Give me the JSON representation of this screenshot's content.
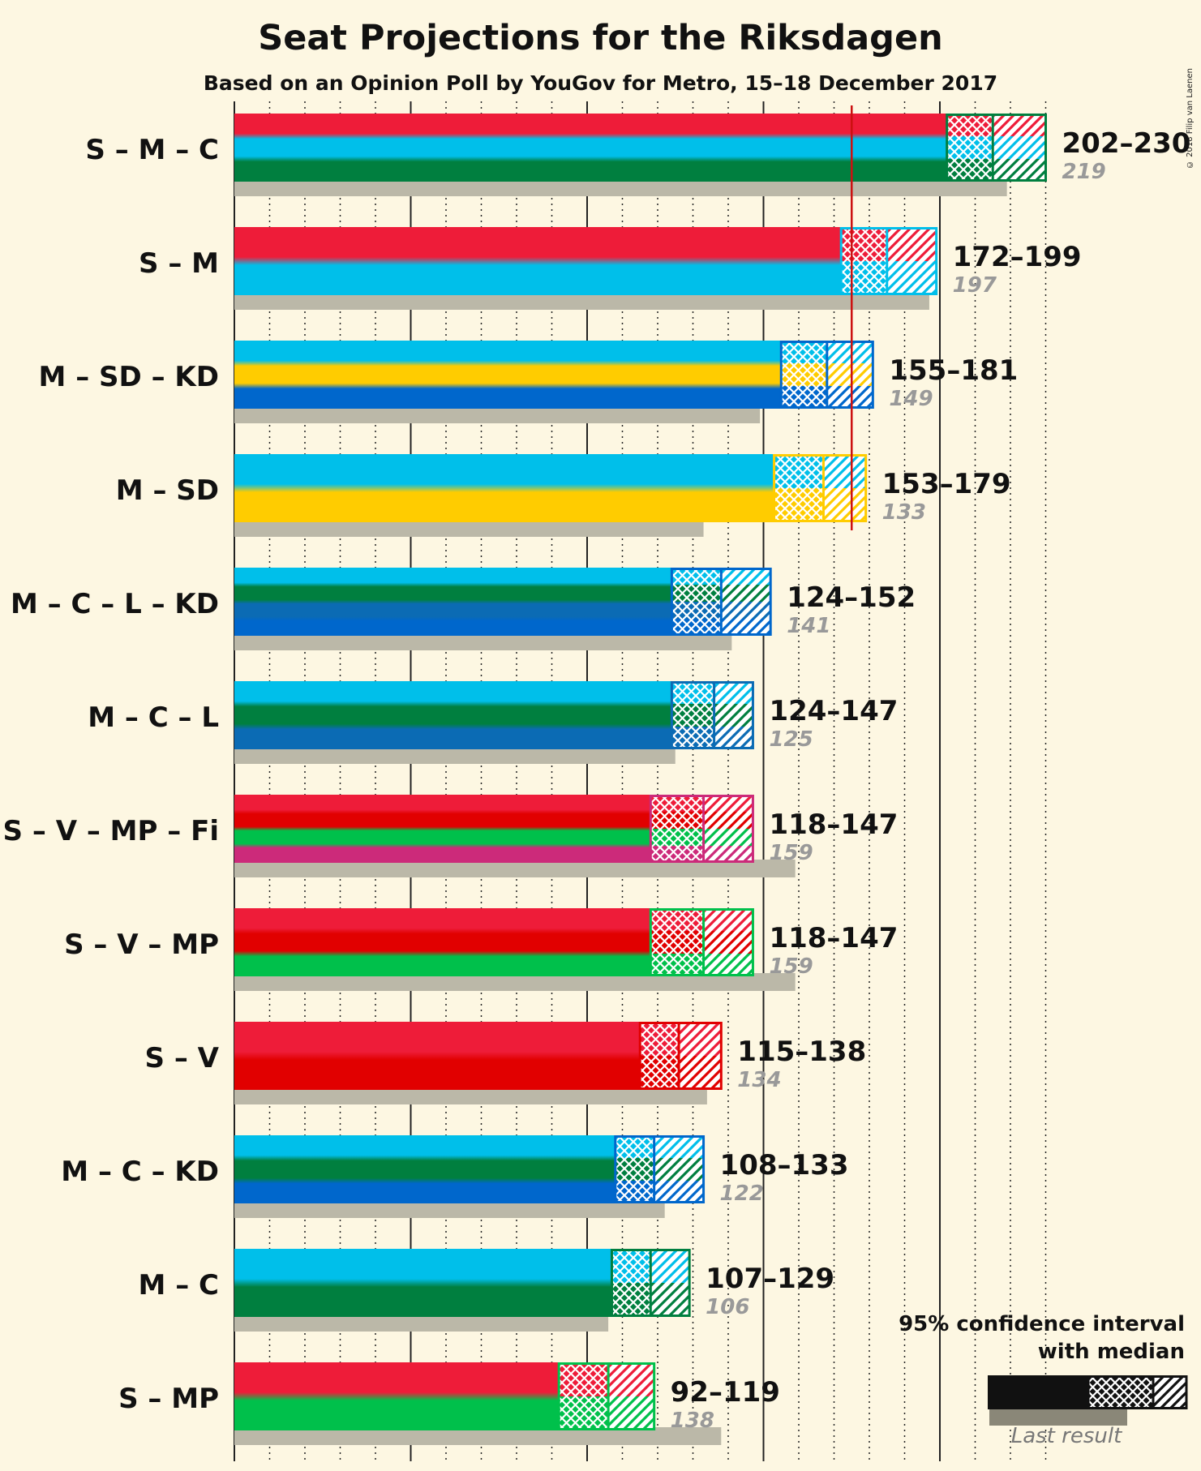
{
  "header": {
    "title": "Seat Projections for the Riksdagen",
    "subtitle": "Based on an Opinion Poll by YouGov for Metro, 15–18 December 2017",
    "copyright": "© 2018 Filip van Laenen"
  },
  "legend": {
    "ci_label_line1": "95% confidence interval",
    "ci_label_line2": "with median",
    "last_result_label": "Last result"
  },
  "colors": {
    "S": "#ee1c39",
    "M": "#00bfea",
    "C": "#007f3f",
    "SD": "#ffcc00",
    "KD": "#0067cc",
    "L": "#0b6bb4",
    "V": "#e10000",
    "MP": "#00c04b",
    "Fi": "#cc2a7a",
    "last_result": "#bbb8a8",
    "majority_line": "#cc1111",
    "background": "#fdf7e2"
  },
  "chart_data": {
    "type": "bar",
    "title": "Seat Projections for the Riksdagen",
    "subtitle": "Based on an Opinion Poll by YouGov for Metro, 15–18 December 2017",
    "majority": 175,
    "xlim": [
      0,
      230
    ],
    "coalitions": [
      {
        "label": "S – M – C",
        "parties": [
          "S",
          "M",
          "C"
        ],
        "low": 202,
        "median": 215,
        "high": 230,
        "range_label": "202–230",
        "last": 219,
        "last_label": "219"
      },
      {
        "label": "S – M",
        "parties": [
          "S",
          "M"
        ],
        "low": 172,
        "median": 185,
        "high": 199,
        "range_label": "172–199",
        "last": 197,
        "last_label": "197"
      },
      {
        "label": "M – SD – KD",
        "parties": [
          "M",
          "SD",
          "KD"
        ],
        "low": 155,
        "median": 168,
        "high": 181,
        "range_label": "155–181",
        "last": 149,
        "last_label": "149"
      },
      {
        "label": "M – SD",
        "parties": [
          "M",
          "SD"
        ],
        "low": 153,
        "median": 167,
        "high": 179,
        "range_label": "153–179",
        "last": 133,
        "last_label": "133"
      },
      {
        "label": "M – C – L – KD",
        "parties": [
          "M",
          "C",
          "L",
          "KD"
        ],
        "low": 124,
        "median": 138,
        "high": 152,
        "range_label": "124–152",
        "last": 141,
        "last_label": "141"
      },
      {
        "label": "M – C – L",
        "parties": [
          "M",
          "C",
          "L"
        ],
        "low": 124,
        "median": 136,
        "high": 147,
        "range_label": "124–147",
        "last": 125,
        "last_label": "125"
      },
      {
        "label": "S – V – MP – Fi",
        "parties": [
          "S",
          "V",
          "MP",
          "Fi"
        ],
        "low": 118,
        "median": 133,
        "high": 147,
        "range_label": "118–147",
        "last": 159,
        "last_label": "159"
      },
      {
        "label": "S – V – MP",
        "parties": [
          "S",
          "V",
          "MP"
        ],
        "low": 118,
        "median": 133,
        "high": 147,
        "range_label": "118–147",
        "last": 159,
        "last_label": "159"
      },
      {
        "label": "S – V",
        "parties": [
          "S",
          "V"
        ],
        "low": 115,
        "median": 126,
        "high": 138,
        "range_label": "115–138",
        "last": 134,
        "last_label": "134"
      },
      {
        "label": "M – C – KD",
        "parties": [
          "M",
          "C",
          "KD"
        ],
        "low": 108,
        "median": 119,
        "high": 133,
        "range_label": "108–133",
        "last": 122,
        "last_label": "122"
      },
      {
        "label": "M – C",
        "parties": [
          "M",
          "C"
        ],
        "low": 107,
        "median": 118,
        "high": 129,
        "range_label": "107–129",
        "last": 106,
        "last_label": "106"
      },
      {
        "label": "S – MP",
        "parties": [
          "S",
          "MP"
        ],
        "low": 92,
        "median": 106,
        "high": 119,
        "range_label": "92–119",
        "last": 138,
        "last_label": "138"
      }
    ]
  }
}
